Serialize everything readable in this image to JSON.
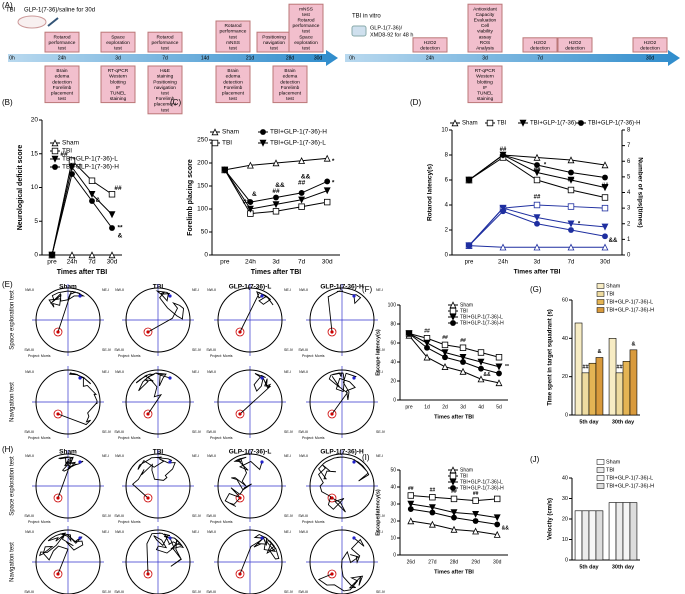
{
  "timeline": {
    "panel_label": "(A)",
    "left": {
      "labels": [
        "TBI",
        "GLP-1(7-36)/saline for 30d"
      ],
      "ticks": [
        "0h",
        "24h",
        "3d",
        "7d",
        "14d",
        "21d",
        "28d",
        "30d"
      ],
      "top_boxes": [
        [
          "Rotarod",
          "performance",
          "test"
        ],
        [
          "Space",
          "exploration",
          "test"
        ],
        [
          "Rotarod",
          "performance",
          "test"
        ],
        [
          "Rotarod",
          "performance",
          "test",
          "mNSS",
          "test"
        ],
        [
          "Positioning",
          "navigation",
          "test"
        ],
        [
          "mNSS",
          "test",
          "Rotarod",
          "performance",
          "test",
          "Space",
          "exploration",
          "test"
        ]
      ],
      "bottom_boxes": [
        [
          "Brain",
          "edema",
          "detection",
          "Forelimb",
          "placement",
          "test"
        ],
        [
          "RT-qPCR",
          "Western",
          "blotting",
          "IF",
          "TUNEL",
          "staining"
        ],
        [
          "H&E",
          "staining",
          "Positioning",
          "navigation",
          "test",
          "Forelimb",
          "placement",
          "test"
        ],
        [
          "Brain",
          "edema",
          "detection",
          "Forelimb",
          "placement",
          "test"
        ],
        [
          "Brain",
          "edema",
          "detection",
          "Forelimb",
          "placement",
          "test"
        ]
      ]
    },
    "right": {
      "labels": [
        "TBI in vitro",
        "GLP-1(7-36)/",
        "XMD8-92 for 48 h"
      ],
      "ticks": [
        "0h",
        "24h",
        "3d",
        "7d",
        "30d"
      ],
      "top_boxes": [
        [
          "H2O2",
          "detection"
        ],
        [
          "Antioxidant",
          "Capacity",
          "Evaluation",
          "Cell",
          "viability",
          "assay",
          "ROS",
          "Analysis"
        ],
        [
          "H2O2",
          "detection"
        ],
        [
          "H2O2",
          "detection"
        ],
        [
          "H2O2",
          "detection"
        ]
      ],
      "bottom_boxes": [
        [
          "RT-qPCR",
          "Western",
          "blotting",
          "IF",
          "TUNEL",
          "staining"
        ]
      ]
    }
  },
  "mazes": [
    {
      "panel_label": "(E)",
      "columns": [
        "Sham",
        "TBI",
        "GLP-1(7-36)-L",
        "GLP-1(7-36)-H"
      ],
      "rows": [
        "Space exploration test",
        "Navigation test"
      ]
    },
    {
      "panel_label": "(H)",
      "columns": [
        "Sham",
        "TBI",
        "GLP-1(7-36)-L",
        "GLP-1(7-36)-H"
      ],
      "rows": [
        "Space exploration test",
        "Navigation test"
      ]
    }
  ],
  "maze_labels": {
    "quadrants": [
      "NW-II",
      "NE-I",
      "SW-III",
      "SE-IV"
    ],
    "project": "Project: Morris"
  },
  "chart_data": [
    {
      "type": "line",
      "panel_label": "(B)",
      "ylabel": "Neurological deficit score",
      "xlabel": "Times after TBI",
      "categories": [
        "pre",
        "24h",
        "7d",
        "30d"
      ],
      "ylim": [
        0,
        20
      ],
      "yticks": [
        0,
        5,
        10,
        15,
        20
      ],
      "series": [
        {
          "name": "Sham",
          "color": "#000000",
          "marker": "triangle-open",
          "values": [
            0,
            0,
            0,
            0
          ]
        },
        {
          "name": "TBI",
          "color": "#000000",
          "marker": "square-open",
          "values": [
            0,
            14,
            11,
            9
          ]
        },
        {
          "name": "TBI+GLP-1(7-36)-L",
          "color": "#000000",
          "marker": "triangle-down",
          "values": [
            0,
            13,
            9,
            6
          ]
        },
        {
          "name": "TBI+GLP-1(7-36)-H",
          "color": "#000000",
          "marker": "circle",
          "values": [
            0,
            12,
            8,
            4
          ]
        }
      ],
      "annotations": [
        "##",
        "*",
        "&",
        "##",
        "**",
        "&"
      ]
    },
    {
      "type": "line",
      "panel_label": "(C)",
      "ylabel": "Forelimb placing score",
      "xlabel": "Times after TBI",
      "categories": [
        "pre",
        "24h",
        "3d",
        "7d",
        "30d"
      ],
      "ylim": [
        0,
        250
      ],
      "yticks": [
        0,
        50,
        100,
        150,
        200,
        250
      ],
      "series": [
        {
          "name": "Sham",
          "color": "#000000",
          "marker": "triangle-open",
          "values": [
            185,
            195,
            200,
            205,
            210
          ]
        },
        {
          "name": "TBI",
          "color": "#000000",
          "marker": "square-open",
          "values": [
            185,
            90,
            95,
            105,
            115
          ]
        },
        {
          "name": "TBI+GLP-1(7-36)-L",
          "color": "#000000",
          "marker": "triangle-down",
          "values": [
            185,
            100,
            110,
            120,
            140
          ]
        },
        {
          "name": "TBI+GLP-1(7-36)-H",
          "color": "#000000",
          "marker": "circle",
          "values": [
            185,
            115,
            125,
            135,
            160
          ]
        }
      ],
      "annotations": [
        "##",
        "&",
        "##",
        "&&",
        "##",
        "&&",
        "*",
        "*"
      ]
    },
    {
      "type": "line",
      "panel_label": "(D)",
      "ylabel": "Rotarod latency(s)",
      "y2label": "Number of slips(times)",
      "xlabel": "Times after TBI",
      "categories": [
        "pre",
        "24h",
        "3d",
        "7d",
        "30d"
      ],
      "ylim": [
        0,
        10
      ],
      "yticks": [
        0,
        2,
        4,
        6,
        8,
        10
      ],
      "y2lim": [
        0,
        8
      ],
      "y2ticks": [
        0,
        1,
        2,
        3,
        4,
        5,
        6,
        7,
        8
      ],
      "y2color": "#1f2fa0",
      "series": [
        {
          "name": "Sham",
          "color": "#000000",
          "marker": "triangle-open",
          "values": [
            6,
            8,
            7.8,
            7.6,
            7.2
          ]
        },
        {
          "name": "TBI",
          "color": "#000000",
          "marker": "square-open",
          "values": [
            6,
            7.8,
            6,
            5.2,
            4.6
          ]
        },
        {
          "name": "TBI+GLP-1(7-36)-L",
          "color": "#000000",
          "marker": "triangle-down",
          "values": [
            6,
            8,
            6.6,
            6,
            5.4
          ]
        },
        {
          "name": "TBI+GLP-1(7-36)-H",
          "color": "#000000",
          "marker": "circle",
          "values": [
            6,
            8,
            7.2,
            6.6,
            6.2
          ]
        },
        {
          "color": "#1f2fa0",
          "marker": "triangle-open",
          "axis": "y2",
          "values": [
            0.6,
            0.5,
            0.5,
            0.5,
            0.5
          ]
        },
        {
          "color": "#1f2fa0",
          "marker": "square-open",
          "axis": "y2",
          "values": [
            0.6,
            3,
            3.2,
            3.1,
            3
          ]
        },
        {
          "color": "#1f2fa0",
          "marker": "triangle-down",
          "axis": "y2",
          "values": [
            0.6,
            3,
            2.4,
            2,
            1.8
          ]
        },
        {
          "color": "#1f2fa0",
          "marker": "circle",
          "axis": "y2",
          "values": [
            0.6,
            2.8,
            2,
            1.6,
            1.2
          ]
        }
      ],
      "annotations": [
        "##",
        "##",
        "##",
        "##",
        "*",
        "*",
        "##",
        "&&"
      ]
    },
    {
      "type": "line",
      "panel_label": "(F)",
      "ylabel": "Escape latency(s)",
      "xlabel": "Times after TBI",
      "categories": [
        "pre",
        "1d",
        "2d",
        "3d",
        "4d",
        "5d"
      ],
      "ylim": [
        0,
        100
      ],
      "yticks": [
        0,
        20,
        40,
        60,
        80,
        100
      ],
      "series": [
        {
          "name": "Sham",
          "color": "#000000",
          "marker": "triangle-open",
          "values": [
            68,
            45,
            35,
            30,
            22,
            18
          ]
        },
        {
          "name": "TBI",
          "color": "#000000",
          "marker": "square-open",
          "values": [
            70,
            65,
            58,
            55,
            50,
            45
          ]
        },
        {
          "name": "TBI+GLP-1(7-36)-L",
          "color": "#000000",
          "marker": "triangle-down",
          "values": [
            70,
            60,
            50,
            45,
            40,
            35
          ]
        },
        {
          "name": "TBI+GLP-1(7-36)-H",
          "color": "#000000",
          "marker": "circle",
          "values": [
            70,
            55,
            45,
            40,
            33,
            28
          ]
        }
      ],
      "annotations": [
        "##",
        "##",
        "##",
        "**",
        "&&"
      ]
    },
    {
      "type": "bar",
      "panel_label": "(G)",
      "ylabel": "Time spent in target squadrant (s)",
      "categories": [
        "5th day",
        "30th day"
      ],
      "ylim": [
        0,
        60
      ],
      "yticks": [
        0,
        20,
        40,
        60
      ],
      "series": [
        {
          "name": "Sham",
          "color": "#f7ecc4",
          "values": [
            48,
            40
          ]
        },
        {
          "name": "TBI",
          "color": "#eedba0",
          "values": [
            22,
            22
          ]
        },
        {
          "name": "TBI+GLP-1(7-36)-L",
          "color": "#e4b454",
          "values": [
            27,
            28
          ]
        },
        {
          "name": "TBI+GLP-1(7-36)-H",
          "color": "#d99a3c",
          "values": [
            30,
            34
          ]
        }
      ],
      "annotations": [
        "##",
        "&",
        "##",
        "&"
      ]
    },
    {
      "type": "line",
      "panel_label": "(I)",
      "ylabel": "Escape latency(s)",
      "xlabel": "Times after TBI",
      "categories": [
        "26d",
        "27d",
        "28d",
        "29d",
        "30d"
      ],
      "ylim": [
        0,
        50
      ],
      "yticks": [
        0,
        10,
        20,
        30,
        40,
        50
      ],
      "series": [
        {
          "name": "Sham",
          "color": "#000000",
          "marker": "triangle-open",
          "values": [
            20,
            18,
            15,
            14,
            12
          ]
        },
        {
          "name": "TBI",
          "color": "#000000",
          "marker": "square-open",
          "values": [
            35,
            34,
            33,
            32,
            33
          ]
        },
        {
          "name": "TBI+GLP-1(7-36)-L",
          "color": "#000000",
          "marker": "triangle-down",
          "values": [
            30,
            28,
            25,
            24,
            22
          ]
        },
        {
          "name": "TBI+GLP-1(7-36)-H",
          "color": "#000000",
          "marker": "circle",
          "values": [
            27,
            25,
            22,
            20,
            18
          ]
        }
      ],
      "annotations": [
        "##",
        "##",
        "##",
        "##",
        "&&"
      ]
    },
    {
      "type": "bar",
      "panel_label": "(J)",
      "ylabel": "Velocity (cm/s)",
      "categories": [
        "5th day",
        "30th day"
      ],
      "ylim": [
        0,
        40
      ],
      "yticks": [
        0,
        10,
        20,
        30,
        40
      ],
      "series": [
        {
          "name": "Sham",
          "color": "#ffffff",
          "values": [
            24,
            28
          ]
        },
        {
          "name": "TBI",
          "color": "#ececec",
          "values": [
            24,
            28
          ]
        },
        {
          "name": "TBI+GLP-1(7-36)-L",
          "color": "#f6f6f6",
          "values": [
            24,
            28
          ]
        },
        {
          "name": "TBI+GLP-1(7-36)-H",
          "color": "#dddddd",
          "values": [
            24,
            28
          ]
        }
      ]
    }
  ]
}
